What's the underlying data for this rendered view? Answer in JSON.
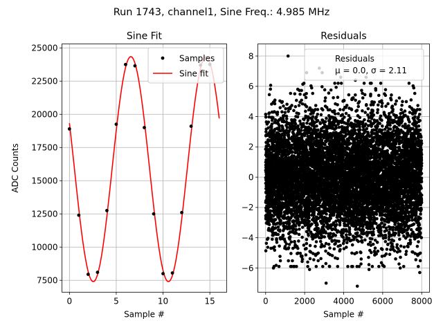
{
  "figure": {
    "suptitle": "Run 1743, channel1, Sine Freq.: 4.985 MHz"
  },
  "chart_data": [
    {
      "type": "line",
      "title": "Sine Fit",
      "xlabel": "Sample #",
      "ylabel": "ADC Counts",
      "xlim": [
        -0.8,
        16.8
      ],
      "ylim": [
        6600,
        25300
      ],
      "xticks": [
        0,
        5,
        10,
        15
      ],
      "xtick_labels": [
        "0",
        "5",
        "10",
        "15"
      ],
      "yticks": [
        7500,
        10000,
        12500,
        15000,
        17500,
        20000,
        22500,
        25000
      ],
      "ytick_labels": [
        "7500",
        "10000",
        "12500",
        "15000",
        "17500",
        "20000",
        "22500",
        "25000"
      ],
      "grid": true,
      "legend": {
        "placement": "upper right",
        "entries": [
          "Samples",
          "Sine fit"
        ]
      },
      "series": [
        {
          "name": "Samples",
          "kind": "scatter",
          "color": "#000000",
          "x": [
            0,
            1,
            2,
            3,
            4,
            5,
            6,
            7,
            8,
            9,
            10,
            11,
            12,
            13,
            14,
            15
          ],
          "y": [
            18900,
            12400,
            7950,
            8100,
            12750,
            19250,
            23750,
            23650,
            19000,
            12500,
            8000,
            8050,
            12600,
            19100,
            23700,
            23750
          ]
        },
        {
          "name": "Sine fit",
          "kind": "line",
          "color": "#ff0000",
          "model": {
            "offset": 15870,
            "amplitude": 8470,
            "period": 8.03,
            "peak_at": 6.56
          },
          "x_range": [
            0,
            16
          ]
        }
      ]
    },
    {
      "type": "scatter",
      "title": "Residuals",
      "xlabel": "Sample #",
      "ylabel": "",
      "xlim": [
        -400,
        8400
      ],
      "ylim": [
        -7.6,
        8.8
      ],
      "xticks": [
        0,
        2000,
        4000,
        6000,
        8000
      ],
      "xtick_labels": [
        "0",
        "2000",
        "4000",
        "6000",
        "8000"
      ],
      "yticks": [
        -6,
        -4,
        -2,
        0,
        2,
        4,
        6,
        8
      ],
      "ytick_labels": [
        "−6",
        "−4",
        "−2",
        "0",
        "2",
        "4",
        "6",
        "8"
      ],
      "grid": true,
      "legend": {
        "placement": "upper right",
        "entries": [
          "Residuals",
          "μ = 0.0, σ = 2.11"
        ]
      },
      "series": [
        {
          "name": "Residuals",
          "color": "#000000",
          "n": 8000,
          "x_range": [
            0,
            7999
          ],
          "mean": 0.0,
          "std": 2.11,
          "outliers": [
            [
              1150,
              8.0
            ],
            [
              2750,
              7.2
            ],
            [
              2900,
              6.9
            ],
            [
              2100,
              6.9
            ],
            [
              3850,
              6.6
            ],
            [
              4600,
              6.4
            ],
            [
              5150,
              6.6
            ],
            [
              4700,
              -7.2
            ],
            [
              3100,
              -7.0
            ],
            [
              2250,
              -6.1
            ],
            [
              400,
              -6.0
            ],
            [
              7900,
              -6.3
            ],
            [
              6900,
              -6.0
            ],
            [
              5300,
              -6.1
            ]
          ]
        }
      ]
    }
  ]
}
